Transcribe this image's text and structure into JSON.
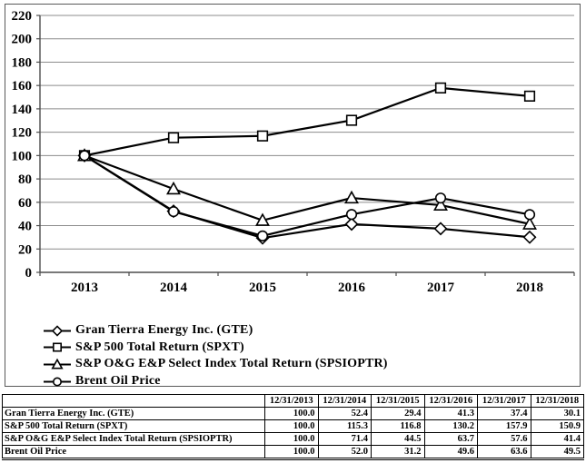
{
  "colors": {
    "background": "#ffffff",
    "text": "#000000",
    "series_line": "#000000",
    "marker_fill": "#ffffff",
    "gridline": "#8c8c8c",
    "axis": "#4d4d4d",
    "box_border": "#595959",
    "table_border": "#000000"
  },
  "chart_data": {
    "type": "line",
    "title": "",
    "xlabel": "",
    "ylabel": "",
    "x_tick_labels": [
      "2013",
      "2014",
      "2015",
      "2016",
      "2017",
      "2018"
    ],
    "y_axis": {
      "min": 0,
      "max": 220,
      "step": 20
    },
    "grid": true,
    "legend_position": "bottom-left",
    "series": [
      {
        "name": "Gran Tierra Energy Inc. (GTE)",
        "marker": "diamond",
        "values": [
          100.0,
          52.4,
          29.4,
          41.3,
          37.4,
          30.1
        ]
      },
      {
        "name": "S&P 500 Total Return (SPXT)",
        "marker": "square",
        "values": [
          100.0,
          115.3,
          116.8,
          130.2,
          157.9,
          150.9
        ]
      },
      {
        "name": "S&P O&G E&P Select Index Total Return (SPSIOPTR)",
        "marker": "triangle",
        "values": [
          100.0,
          71.4,
          44.5,
          63.7,
          57.6,
          41.4
        ]
      },
      {
        "name": "Brent Oil Price",
        "marker": "circle",
        "values": [
          100.0,
          52.0,
          31.2,
          49.6,
          63.6,
          49.5
        ]
      }
    ]
  },
  "table": {
    "columns": [
      "",
      "12/31/2013",
      "12/31/2014",
      "12/31/2015",
      "12/31/2016",
      "12/31/2017",
      "12/31/2018"
    ],
    "rows": [
      {
        "label": "Gran Tierra Energy Inc. (GTE)",
        "values": [
          "100.0",
          "52.4",
          "29.4",
          "41.3",
          "37.4",
          "30.1"
        ]
      },
      {
        "label": "S&P 500 Total Return (SPXT)",
        "values": [
          "100.0",
          "115.3",
          "116.8",
          "130.2",
          "157.9",
          "150.9"
        ]
      },
      {
        "label": "S&P O&G E&P Select Index Total Return (SPSIOPTR)",
        "values": [
          "100.0",
          "71.4",
          "44.5",
          "63.7",
          "57.6",
          "41.4"
        ]
      },
      {
        "label": "Brent Oil Price",
        "values": [
          "100.0",
          "52.0",
          "31.2",
          "49.6",
          "63.6",
          "49.5"
        ]
      }
    ]
  }
}
